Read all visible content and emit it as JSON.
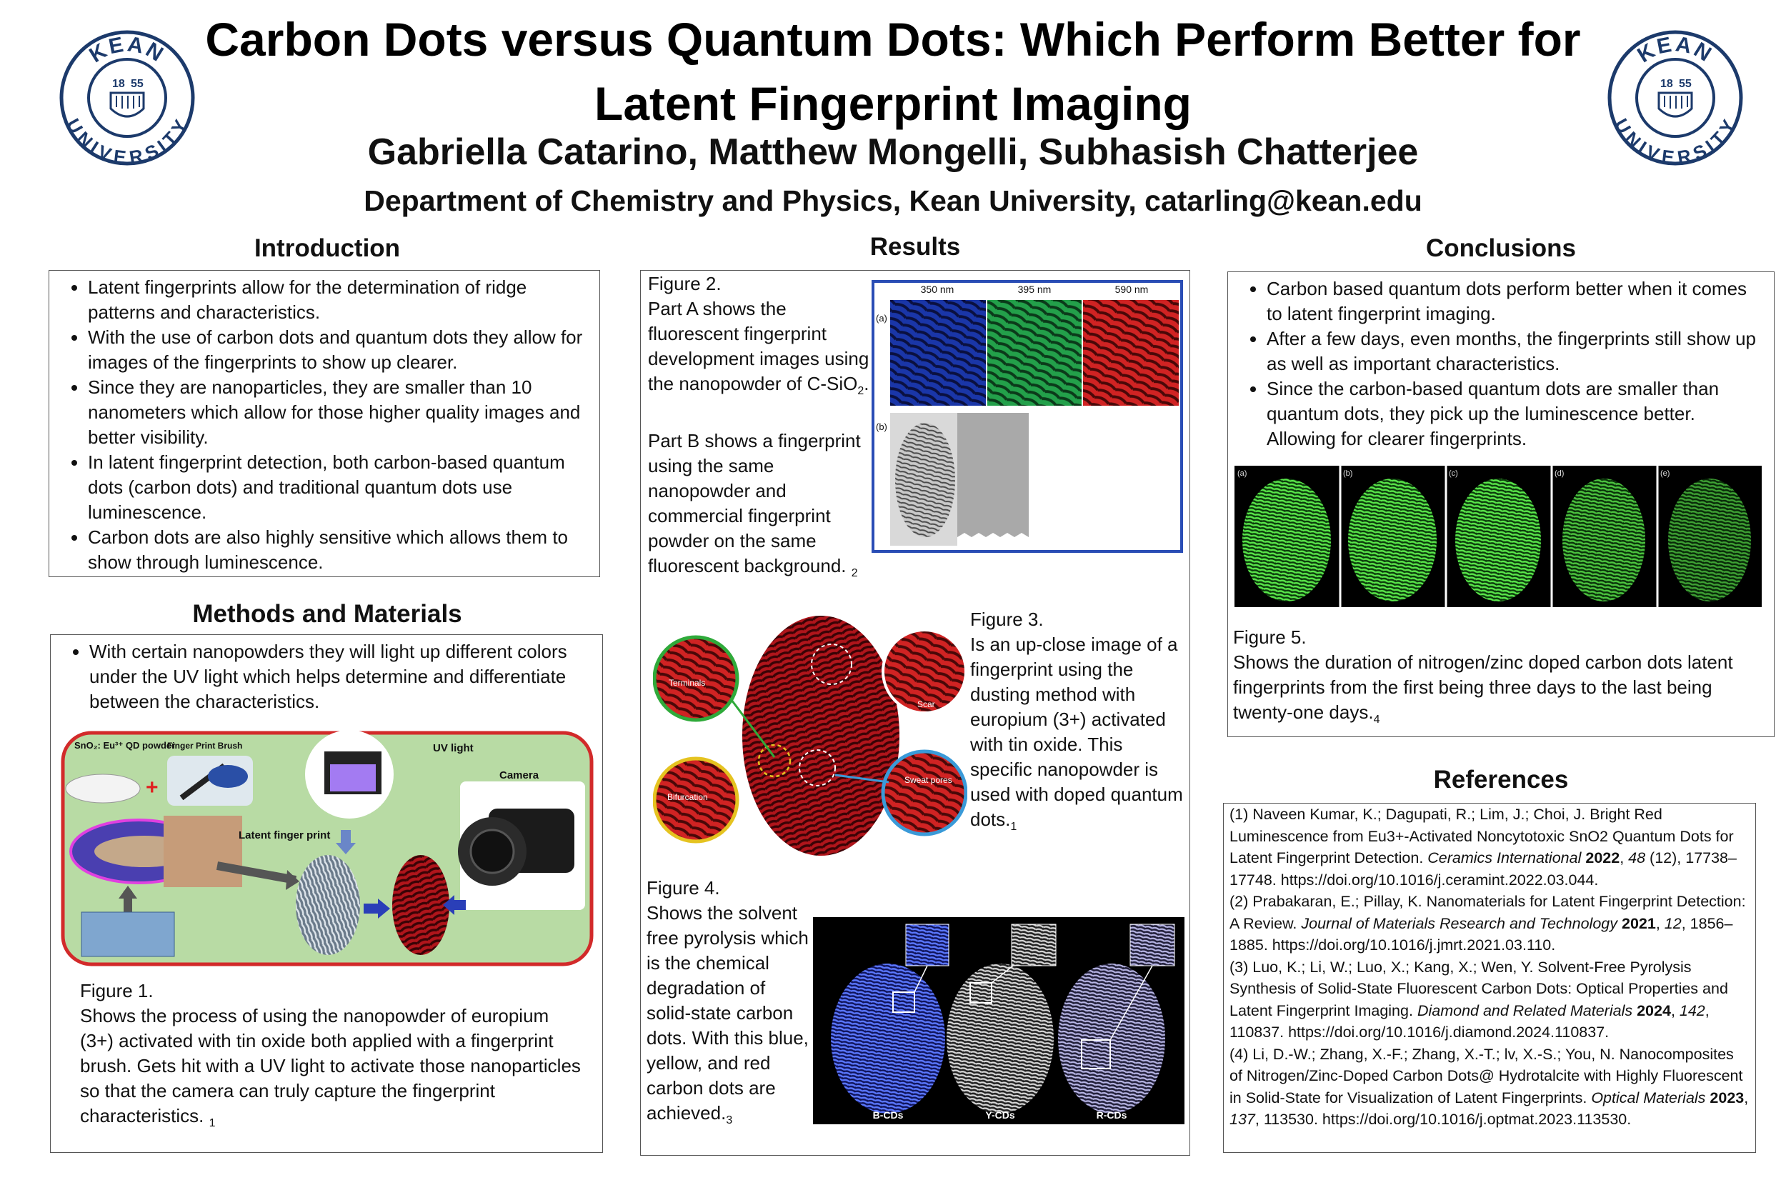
{
  "header": {
    "title_line1": "Carbon Dots versus Quantum Dots: Which Perform Better for",
    "title_line2": "Latent Fingerprint Imaging",
    "authors": "Gabriella Catarino, Matthew Mongelli, Subhasish Chatterjee",
    "department": "Department of Chemistry and Physics, Kean University, catarling@kean.edu",
    "logo_text_top": "KEAN",
    "logo_text_bottom": "UNIVERSITY",
    "logo_year_left": "18",
    "logo_year_right": "55"
  },
  "introduction": {
    "heading": "Introduction",
    "bullets": [
      "Latent fingerprints allow for the determination of ridge patterns and characteristics.",
      "With the use of carbon dots and quantum dots they allow for images of the fingerprints to show up clearer.",
      "Since they are nanoparticles, they are smaller than 10 nanometers which allow for those higher quality images and better visibility.",
      "In latent fingerprint detection, both carbon-based quantum dots (carbon dots) and traditional quantum dots use luminescence.",
      "Carbon dots are also highly sensitive which allows them to show through luminescence."
    ]
  },
  "methods": {
    "heading": "Methods and Materials",
    "bullets": [
      "With certain nanopowders they will light up different colors under the UV light which helps determine and differentiate between the characteristics."
    ],
    "figure_labels": {
      "powder": "SnO₂: Eu³⁺ QD powder",
      "brush": "Finger Print Brush",
      "uv": "UV light",
      "camera": "Camera",
      "latent": "Latent finger print"
    },
    "figure1_caption_title": "Figure 1.",
    "figure1_caption": "Shows the process of using the nanopowder of europium (3+) activated with tin oxide both applied with a fingerprint brush. Gets hit with a UV light to activate those nanoparticles so that the camera can truly capture the fingerprint characteristics.",
    "figure1_ref": "1"
  },
  "results": {
    "heading": "Results",
    "figure2_title": "Figure 2.",
    "figure2_partA": "Part A shows the fluorescent fingerprint development images using the nanopowder of C-SiO",
    "figure2_partA_sub": "2",
    "figure2_partA_end": ".",
    "figure2_partB": "Part B shows a fingerprint using the same nanopowder and commercial fingerprint powder on the same fluorescent background.",
    "figure2_ref": "2",
    "figure2_labels": {
      "w1": "350 nm",
      "w2": "395 nm",
      "w3": "590 nm",
      "a": "(a)",
      "b": "(b)"
    },
    "figure3_title": "Figure 3.",
    "figure3_caption": "Is an up-close image of a fingerprint using the dusting method with europium (3+) activated with tin oxide. This specific nanopowder is used with doped quantum dots.",
    "figure3_ref": "1",
    "figure3_labels": {
      "terminals": "Terminals",
      "scar": "Scar",
      "bifurcation": "Bifurcation",
      "pores": "Sweat pores"
    },
    "figure4_title": "Figure 4.",
    "figure4_caption": "Shows the solvent free pyrolysis which is the chemical degradation of solid-state carbon dots. With this blue, yellow, and red carbon dots are achieved.",
    "figure4_ref": "3",
    "figure4_labels": {
      "b": "B-CDs",
      "y": "Y-CDs",
      "r": "R-CDs"
    }
  },
  "conclusions": {
    "heading": "Conclusions",
    "bullets": [
      "Carbon based quantum dots perform better when it comes to latent fingerprint imaging.",
      "After a few days, even months, the fingerprints still show up as well as important characteristics.",
      "Since the carbon-based quantum dots are smaller than quantum dots, they pick up the luminescence better. Allowing for clearer fingerprints."
    ],
    "figure5_labels": [
      "(a)",
      "(b)",
      "(c)",
      "(d)",
      "(e)"
    ],
    "figure5_title": "Figure 5.",
    "figure5_caption": "Shows the duration of nitrogen/zinc doped carbon dots latent fingerprints from the first being three days to the last being twenty-one days.",
    "figure5_ref": "4"
  },
  "references": {
    "heading": "References",
    "items": [
      {
        "pre": "(1) Naveen Kumar, K.; Dagupati, R.; Lim, J.; Choi, J. Bright Red Luminescence from Eu3+-Activated Noncytotoxic SnO2 Quantum Dots for Latent Fingerprint Detection. ",
        "journal": "Ceramics International",
        "year": "2022",
        "vol": "48",
        "post": " (12), 17738–17748. https://doi.org/10.1016/j.ceramint.2022.03.044."
      },
      {
        "pre": "(2) Prabakaran, E.; Pillay, K. Nanomaterials for Latent Fingerprint Detection: A Review. ",
        "journal": "Journal of Materials Research and Technology",
        "year": "2021",
        "vol": "12",
        "post": ", 1856–1885. https://doi.org/10.1016/j.jmrt.2021.03.110."
      },
      {
        "pre": "(3) Luo, K.; Li, W.; Luo, X.; Kang, X.; Wen, Y. Solvent-Free Pyrolysis Synthesis of Solid-State Fluorescent Carbon Dots: Optical Properties and Latent Fingerprint Imaging. ",
        "journal": "Diamond and Related Materials",
        "year": "2024",
        "vol": "142",
        "post": ", 110837. https://doi.org/10.1016/j.diamond.2024.110837."
      },
      {
        "pre": "(4) Li, D.-W.; Zhang, X.-F.; Zhang, X.-T.; lv, X.-S.; You, N. Nanocomposites of Nitrogen/Zinc-Doped Carbon Dots@ Hydrotalcite with Highly Fluorescent in Solid-State for Visualization of Latent Fingerprints. ",
        "journal": "Optical Materials",
        "year": "2023",
        "vol": "137",
        "post": ", 113530. https://doi.org/10.1016/j.optmat.2023.113530."
      }
    ]
  },
  "colors": {
    "kean_navy": "#1c3a6b",
    "figure2_frame": "#2a4db5",
    "methods_frame": "#d22a2a",
    "methods_bg": "#b8dba4"
  }
}
